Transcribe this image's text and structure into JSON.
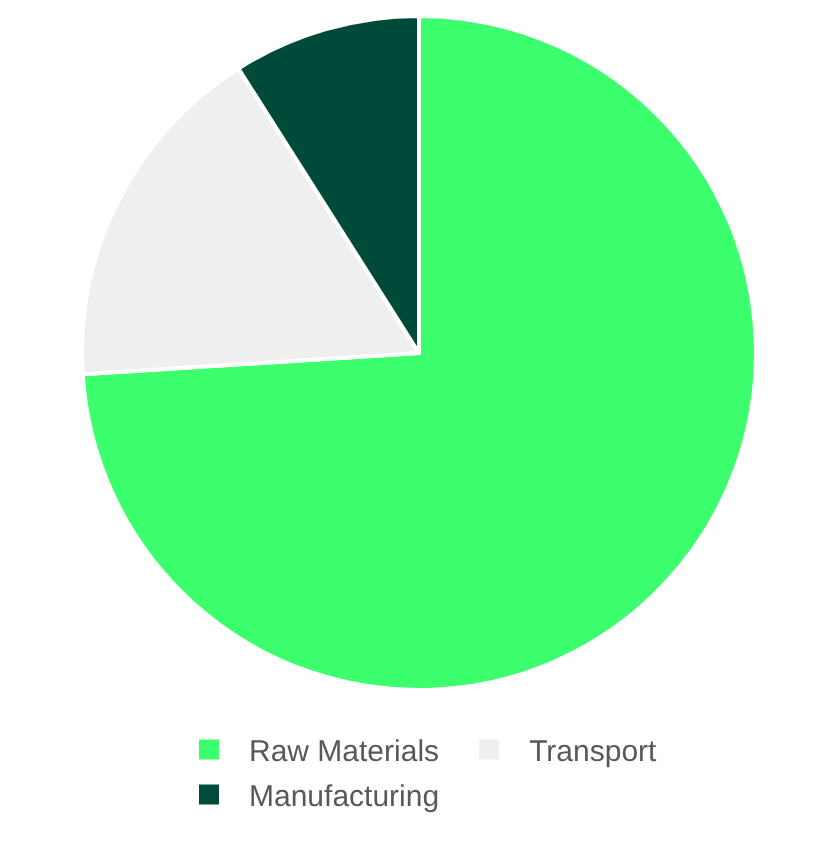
{
  "chart_data": {
    "type": "pie",
    "categories": [
      "Raw Materials",
      "Transport",
      "Manufacturing"
    ],
    "values": [
      74,
      17,
      9
    ],
    "colors": [
      "#3cff6e",
      "#efefef",
      "#004a3a"
    ],
    "legend": "bottom"
  }
}
